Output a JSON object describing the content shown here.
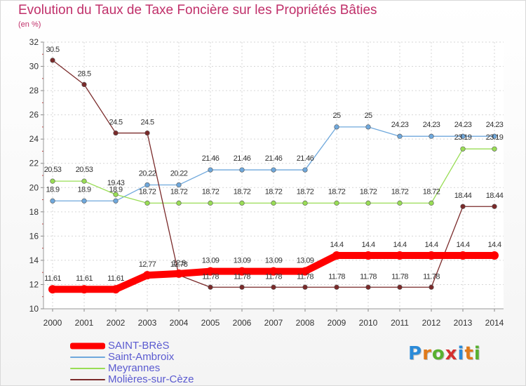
{
  "chart_data": {
    "type": "line",
    "title": "Evolution du Taux de Taxe Foncière sur les Propriétés Bâties",
    "subtitle": "(en %)",
    "x": [
      2000,
      2001,
      2002,
      2003,
      2004,
      2005,
      2006,
      2007,
      2008,
      2009,
      2010,
      2011,
      2012,
      2013,
      2014
    ],
    "ylim": [
      10,
      32
    ],
    "yticks": [
      10,
      12,
      14,
      16,
      18,
      20,
      22,
      24,
      26,
      28,
      30,
      32
    ],
    "grid": true,
    "legend_position": "bottom-left",
    "series": [
      {
        "name": "SAINT-BRèS",
        "color": "#ff0000",
        "values": [
          11.61,
          11.61,
          11.61,
          12.77,
          12.9,
          13.09,
          13.09,
          13.09,
          13.09,
          14.4,
          14.4,
          14.4,
          14.4,
          14.4,
          14.4
        ]
      },
      {
        "name": "Saint-Ambroix",
        "color": "#6fa8dc",
        "values": [
          18.9,
          18.9,
          18.9,
          20.22,
          20.22,
          21.46,
          21.46,
          21.46,
          21.46,
          25,
          25,
          24.23,
          24.23,
          24.23,
          24.23
        ]
      },
      {
        "name": "Meyrannes",
        "color": "#99dd55",
        "values": [
          20.53,
          20.53,
          19.43,
          18.72,
          18.72,
          18.72,
          18.72,
          18.72,
          18.72,
          18.72,
          18.72,
          18.72,
          18.72,
          23.19,
          23.19
        ]
      },
      {
        "name": "Molières-sur-Cèze",
        "color": "#7a2a2a",
        "values": [
          30.5,
          28.5,
          24.5,
          24.5,
          12.78,
          11.78,
          11.78,
          11.78,
          11.78,
          11.78,
          11.78,
          11.78,
          11.78,
          18.44,
          18.44
        ]
      }
    ]
  },
  "logo": {
    "letters": [
      "P",
      "r",
      "o",
      "x",
      "i",
      "t",
      "i"
    ],
    "colors": [
      "#2a8ad8",
      "#e07a1a",
      "#58b030",
      "#d43030",
      "#2a8ad8",
      "#e07a1a",
      "#58b030"
    ]
  }
}
